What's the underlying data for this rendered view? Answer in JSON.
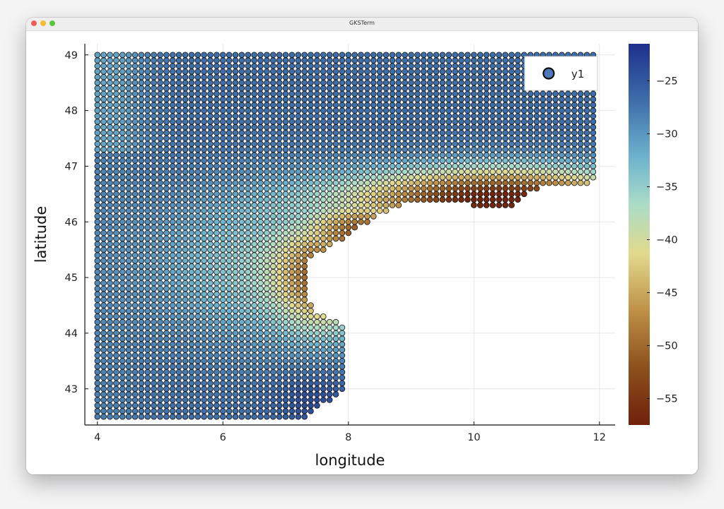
{
  "window": {
    "title": "GKSTerm"
  },
  "chart_data": {
    "type": "scatter",
    "xlabel": "longitude",
    "ylabel": "latitude",
    "xlim": [
      3.8,
      12.25
    ],
    "ylim": [
      42.35,
      49.2
    ],
    "xticks": [
      4,
      6,
      8,
      10,
      12
    ],
    "yticks": [
      43,
      44,
      45,
      46,
      47,
      48,
      49
    ],
    "grid": true,
    "legend": {
      "entries": [
        "y1"
      ],
      "position": "top-right"
    },
    "colorbar": {
      "colormap": "earth (brown-beige-teal-blue)",
      "range": [
        -57.5,
        -21.5
      ],
      "ticks": [
        -25,
        -30,
        -35,
        -40,
        -45,
        -50,
        -55
      ]
    },
    "series": [
      {
        "name": "y1",
        "marker": "circle",
        "grid_spacing": {
          "lon": 0.1,
          "lat": 0.1
        },
        "domain_polygon": [
          [
            4.0,
            42.5
          ],
          [
            7.3,
            42.5
          ],
          [
            8.0,
            43.0
          ],
          [
            8.0,
            44.05
          ],
          [
            7.9,
            44.2
          ],
          [
            7.5,
            44.35
          ],
          [
            7.35,
            44.6
          ],
          [
            7.35,
            45.3
          ],
          [
            7.7,
            45.55
          ],
          [
            8.3,
            46.0
          ],
          [
            8.8,
            46.3
          ],
          [
            9.3,
            46.35
          ],
          [
            10.0,
            46.3
          ],
          [
            10.6,
            46.3
          ],
          [
            11.0,
            46.6
          ],
          [
            11.9,
            46.7
          ],
          [
            12.0,
            47.0
          ],
          [
            12.0,
            48.8
          ],
          [
            11.9,
            49.0
          ],
          [
            4.0,
            49.0
          ]
        ],
        "value_field": {
          "description": "z value at each point",
          "min_value": -57.0,
          "max_value": -22.0,
          "minimum_near": [
            10.4,
            46.4
          ],
          "maximum_near": [
            7.5,
            42.8
          ]
        }
      }
    ]
  }
}
